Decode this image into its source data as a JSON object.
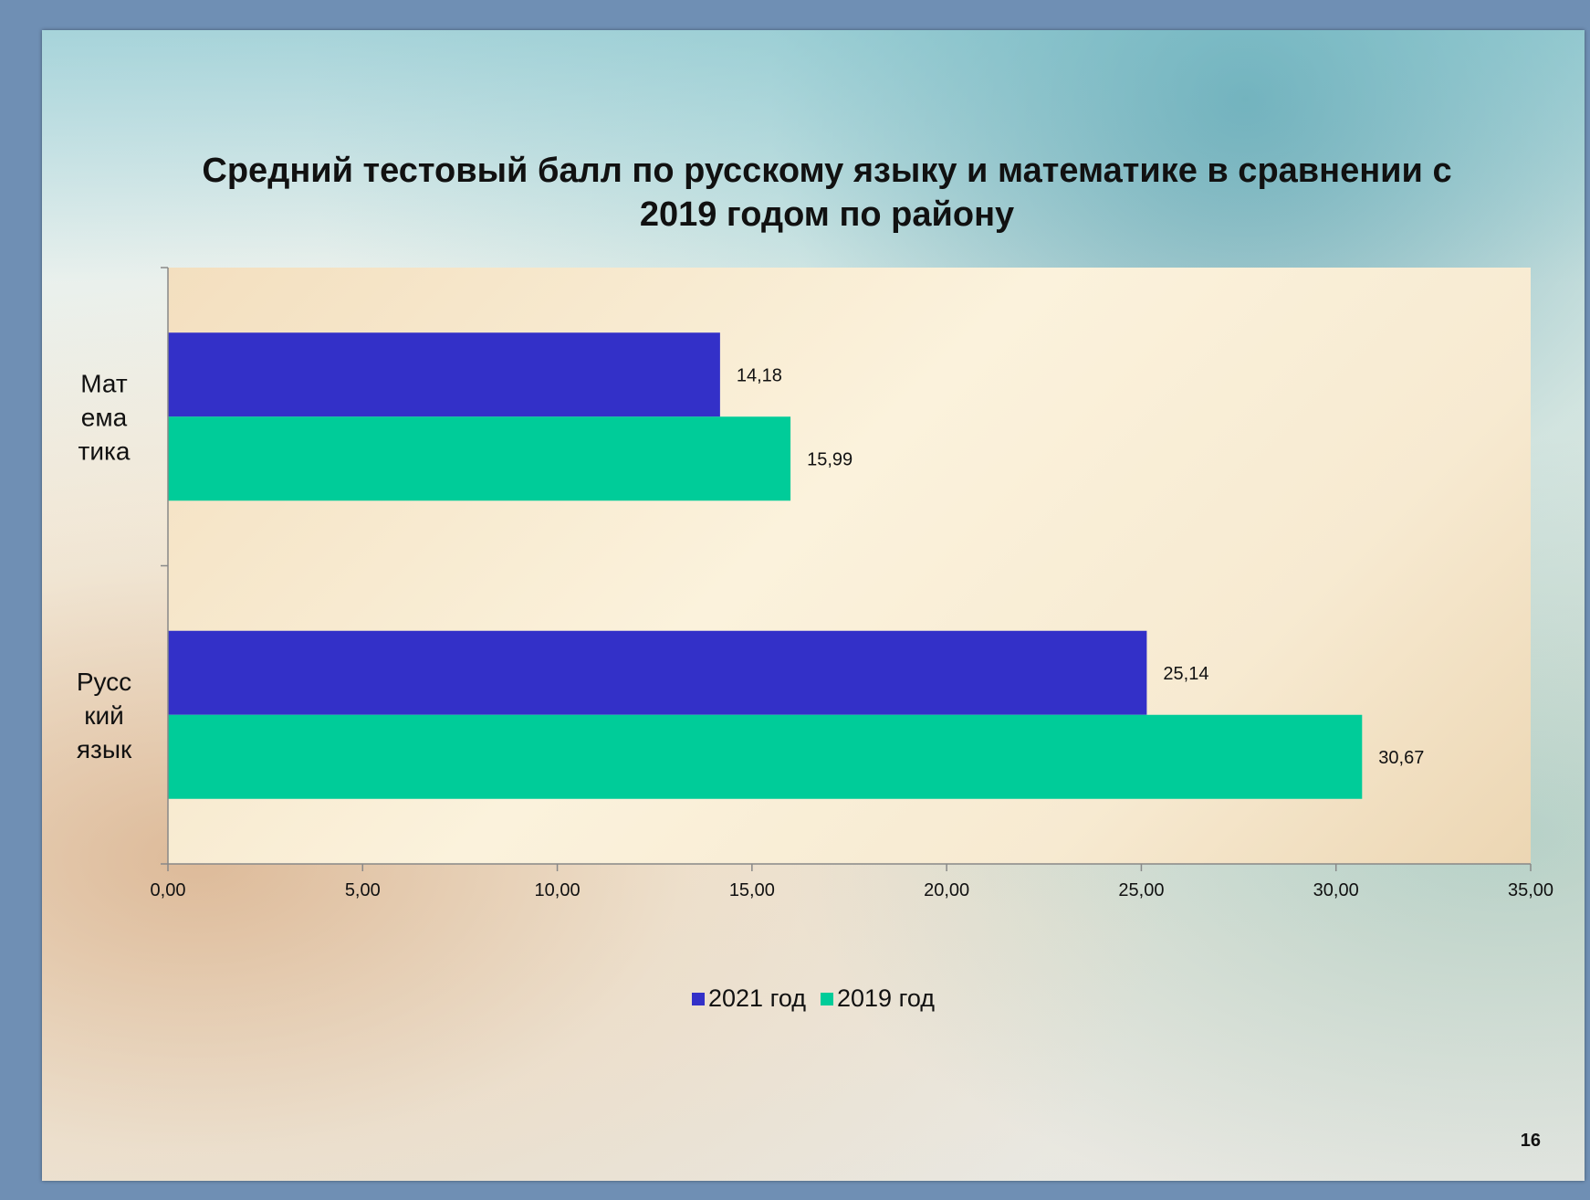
{
  "slide": {
    "title": "Средний тестовый балл по русскому языку и математике в сравнении с 2019 годом по району",
    "page_number": "16"
  },
  "colors": {
    "series_2021": "#3330c8",
    "series_2019": "#00cc99"
  },
  "chart_data": {
    "type": "bar",
    "orientation": "horizontal",
    "title": "Средний тестовый балл по русскому языку и математике в сравнении с 2019 годом по району",
    "categories": [
      "Мат ема тика",
      "Русс кий язык"
    ],
    "category_lines": [
      [
        "Мат",
        "ема",
        "тика"
      ],
      [
        "Русс",
        "кий",
        "язык"
      ]
    ],
    "series": [
      {
        "name": "2021 год",
        "values": [
          14.18,
          25.14
        ],
        "labels": [
          "14,18",
          "25,14"
        ]
      },
      {
        "name": "2019 год",
        "values": [
          15.99,
          30.67
        ],
        "labels": [
          "15,99",
          "30,67"
        ]
      }
    ],
    "xlim": [
      0,
      35
    ],
    "x_ticks": [
      0,
      5,
      10,
      15,
      20,
      25,
      30,
      35
    ],
    "x_tick_labels": [
      "0,00",
      "5,00",
      "10,00",
      "15,00",
      "20,00",
      "25,00",
      "30,00",
      "35,00"
    ],
    "grid": false,
    "legend_position": "bottom"
  }
}
